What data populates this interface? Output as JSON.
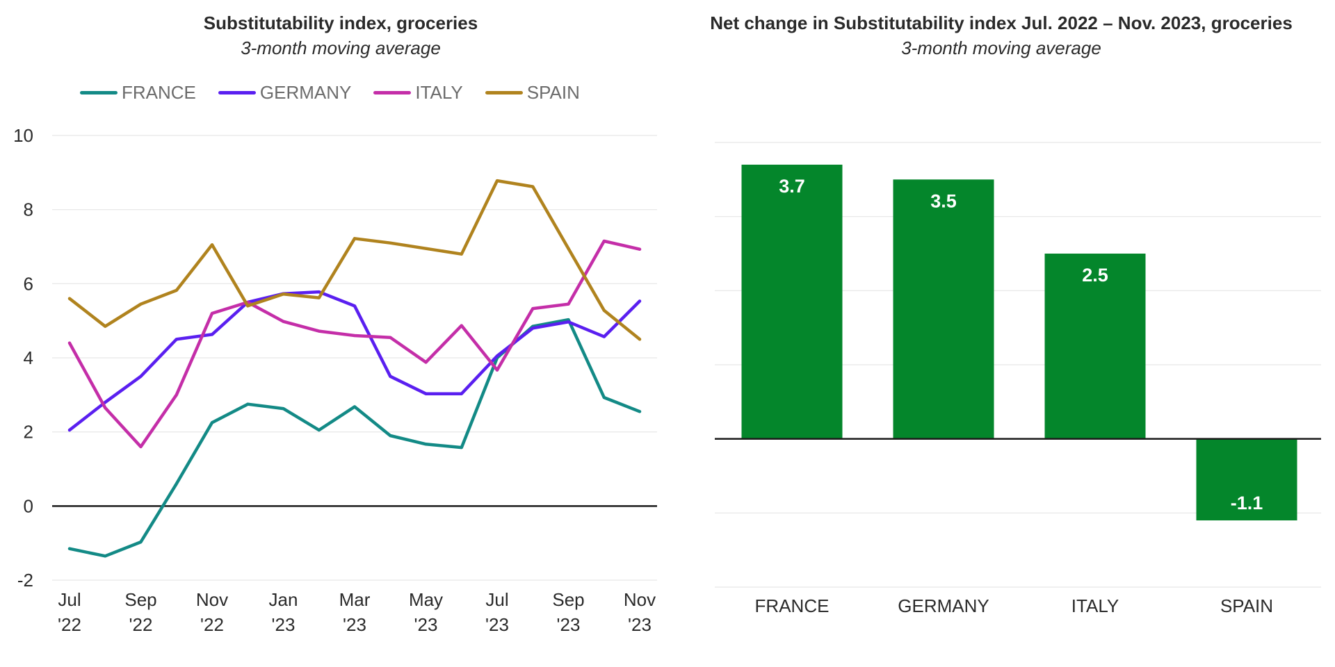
{
  "colors": {
    "france": "#138a86",
    "germany": "#5a1ff0",
    "italy": "#c42ea8",
    "spain": "#b0831e",
    "bar": "#04862b",
    "grid": "#e6e6e6",
    "zero_line": "#1a1a1a"
  },
  "chart_data": [
    {
      "type": "line",
      "title": "Substitutability index, groceries",
      "subtitle": "3-month moving average",
      "x": [
        "Jul 2022",
        "Aug 2022",
        "Sep 2022",
        "Oct 2022",
        "Nov 2022",
        "Dec 2022",
        "Jan 2023",
        "Feb 2023",
        "Mar 2023",
        "Apr 2023",
        "May 2023",
        "Jun 2023",
        "Jul 2023",
        "Aug 2023",
        "Sep 2023",
        "Oct 2023",
        "Nov 2023"
      ],
      "x_tick_labels": [
        {
          "month": "Jul",
          "year": "'22"
        },
        {
          "month": "Sep",
          "year": "'22"
        },
        {
          "month": "Nov",
          "year": "'22"
        },
        {
          "month": "Jan",
          "year": "'23"
        },
        {
          "month": "Mar",
          "year": "'23"
        },
        {
          "month": "May",
          "year": "'23"
        },
        {
          "month": "Jul",
          "year": "'23"
        },
        {
          "month": "Sep",
          "year": "'23"
        },
        {
          "month": "Nov",
          "year": "'23"
        }
      ],
      "y_ticks": [
        "10",
        "8",
        "6",
        "4",
        "2",
        "0",
        "-2"
      ],
      "ylim": [
        -2,
        10
      ],
      "grid": true,
      "legend": "top",
      "series": [
        {
          "name": "FRANCE",
          "color_key": "france",
          "values": [
            -1.15,
            -1.35,
            -0.97,
            0.6,
            2.25,
            2.75,
            2.63,
            2.05,
            2.68,
            1.9,
            1.67,
            1.58,
            4.0,
            4.85,
            5.03,
            2.93,
            2.55
          ]
        },
        {
          "name": "GERMANY",
          "color_key": "germany",
          "values": [
            2.05,
            2.8,
            3.5,
            4.5,
            4.63,
            5.5,
            5.73,
            5.78,
            5.4,
            3.5,
            3.03,
            3.03,
            4.05,
            4.8,
            4.97,
            4.57,
            5.53
          ]
        },
        {
          "name": "ITALY",
          "color_key": "italy",
          "values": [
            4.4,
            2.65,
            1.6,
            3.0,
            5.2,
            5.5,
            4.98,
            4.72,
            4.6,
            4.55,
            3.88,
            4.87,
            3.67,
            5.33,
            5.45,
            7.15,
            6.93
          ]
        },
        {
          "name": "SPAIN",
          "color_key": "spain",
          "values": [
            5.6,
            4.85,
            5.45,
            5.82,
            7.05,
            5.4,
            5.72,
            5.62,
            7.22,
            7.1,
            6.95,
            6.8,
            8.78,
            8.62,
            6.95,
            5.28,
            4.5
          ]
        }
      ]
    },
    {
      "type": "bar",
      "title": "Net change in Substitutability index Jul. 2022 – Nov. 2023, groceries",
      "subtitle": "3-month moving average",
      "categories": [
        "FRANCE",
        "GERMANY",
        "ITALY",
        "SPAIN"
      ],
      "values": [
        3.7,
        3.5,
        2.5,
        -1.1
      ],
      "value_labels": [
        "3.7",
        "3.5",
        "2.5",
        "-1.1"
      ],
      "ylim": [
        -2,
        4
      ],
      "grid": true
    }
  ]
}
